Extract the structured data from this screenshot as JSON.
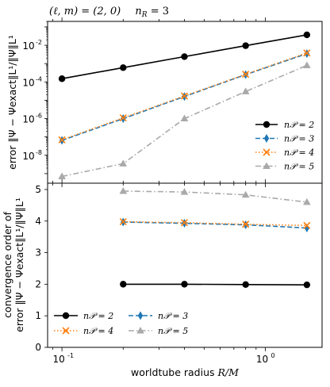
{
  "chart_data": [
    {
      "type": "line",
      "panel": "top",
      "title": "(ℓ, m) = (2, 0)   n_R = 3",
      "xlabel": "worldtube radius R/M",
      "ylabel": "error ‖Ψ − Ψ_exact‖_L¹ / ‖Ψ‖_L¹",
      "xscale": "log",
      "yscale": "log",
      "xlim": [
        0.085,
        1.9
      ],
      "ylim": [
        3e-10,
        0.2
      ],
      "yticks": [
        {
          "base": "10",
          "exp": "-8",
          "value": 1e-08
        },
        {
          "base": "10",
          "exp": "-6",
          "value": 1e-06
        },
        {
          "base": "10",
          "exp": "-4",
          "value": 0.0001
        },
        {
          "base": "10",
          "exp": "-2",
          "value": 0.01
        }
      ],
      "legend_loc": "lower-right",
      "x": [
        0.1,
        0.2,
        0.4,
        0.8,
        1.6
      ],
      "series": [
        {
          "name": "n_P = 2",
          "marker": "circle",
          "linestyle": "solid",
          "color": "#000000",
          "x": [
            0.1,
            0.2,
            0.4,
            0.8,
            1.6
          ],
          "y": [
            0.00015,
            0.0006,
            0.0024,
            0.0095,
            0.037
          ]
        },
        {
          "name": "n_P = 3",
          "marker": "diamond",
          "linestyle": "dashed",
          "color": "#1f77b4",
          "x": [
            0.1,
            0.2,
            0.4,
            0.8,
            1.6
          ],
          "y": [
            6.5e-08,
            1e-06,
            1.6e-05,
            0.00025,
            0.0035
          ]
        },
        {
          "name": "n_P = 4",
          "marker": "x",
          "linestyle": "dotted",
          "color": "#ff7f0e",
          "x": [
            0.1,
            0.2,
            0.4,
            0.8,
            1.6
          ],
          "y": [
            7e-08,
            1.1e-06,
            1.7e-05,
            0.00026,
            0.0038
          ]
        },
        {
          "name": "n_P = 5",
          "marker": "triangle",
          "linestyle": "dashdot",
          "color": "#a9a9a9",
          "x": [
            0.1,
            0.2,
            0.4,
            0.8,
            1.6
          ],
          "y": [
            7e-10,
            3.5e-09,
            1e-06,
            3e-05,
            0.0008
          ]
        }
      ]
    },
    {
      "type": "line",
      "panel": "bottom",
      "xlabel": "worldtube radius R/M",
      "ylabel": "convergence order of error ‖Ψ − Ψ_exact‖_L¹ / ‖Ψ‖_L¹",
      "xscale": "log",
      "xlim": [
        0.085,
        1.9
      ],
      "ylim": [
        0,
        5.2
      ],
      "yticks": [
        "0",
        "1",
        "2",
        "3",
        "4",
        "5"
      ],
      "xticks": [
        {
          "base": "10",
          "exp": "-1",
          "value": 0.1
        },
        {
          "base": "10",
          "exp": "0",
          "value": 1
        }
      ],
      "legend_loc": "lower-left",
      "series": [
        {
          "name": "n_P = 2",
          "marker": "circle",
          "linestyle": "solid",
          "color": "#000000",
          "x": [
            0.2,
            0.4,
            0.8,
            1.6
          ],
          "y": [
            2.0,
            2.0,
            1.99,
            1.98
          ]
        },
        {
          "name": "n_P = 3",
          "marker": "diamond",
          "linestyle": "dashed",
          "color": "#1f77b4",
          "x": [
            0.2,
            0.4,
            0.8,
            1.6
          ],
          "y": [
            3.97,
            3.93,
            3.88,
            3.78
          ]
        },
        {
          "name": "n_P = 4",
          "marker": "x",
          "linestyle": "dotted",
          "color": "#ff7f0e",
          "x": [
            0.2,
            0.4,
            0.8,
            1.6
          ],
          "y": [
            3.98,
            3.95,
            3.9,
            3.86
          ]
        },
        {
          "name": "n_P = 5",
          "marker": "triangle",
          "linestyle": "dashdot",
          "color": "#a9a9a9",
          "x": [
            0.2,
            0.4,
            0.8,
            1.6
          ],
          "y": [
            4.95,
            4.92,
            4.83,
            4.6
          ]
        }
      ]
    }
  ],
  "text": {
    "title_lm": "(ℓ, m) = (2, 0)",
    "title_n": "n",
    "title_n_sub": "R",
    "title_n_val": " = 3",
    "xlabel_text": "worldtube radius ",
    "xlabel_math": "R/M",
    "ylabel_top": "error ‖Ψ − Ψexact‖L¹/‖Ψ‖L¹",
    "ylabel_bottom_1": "convergence order of",
    "ylabel_bottom_2": "error ‖Ψ − Ψexact‖L¹/‖Ψ‖L¹",
    "legend_labels": [
      "n𝒫 = 2",
      "n𝒫 = 3",
      "n𝒫 = 4",
      "n𝒫 = 5"
    ]
  }
}
